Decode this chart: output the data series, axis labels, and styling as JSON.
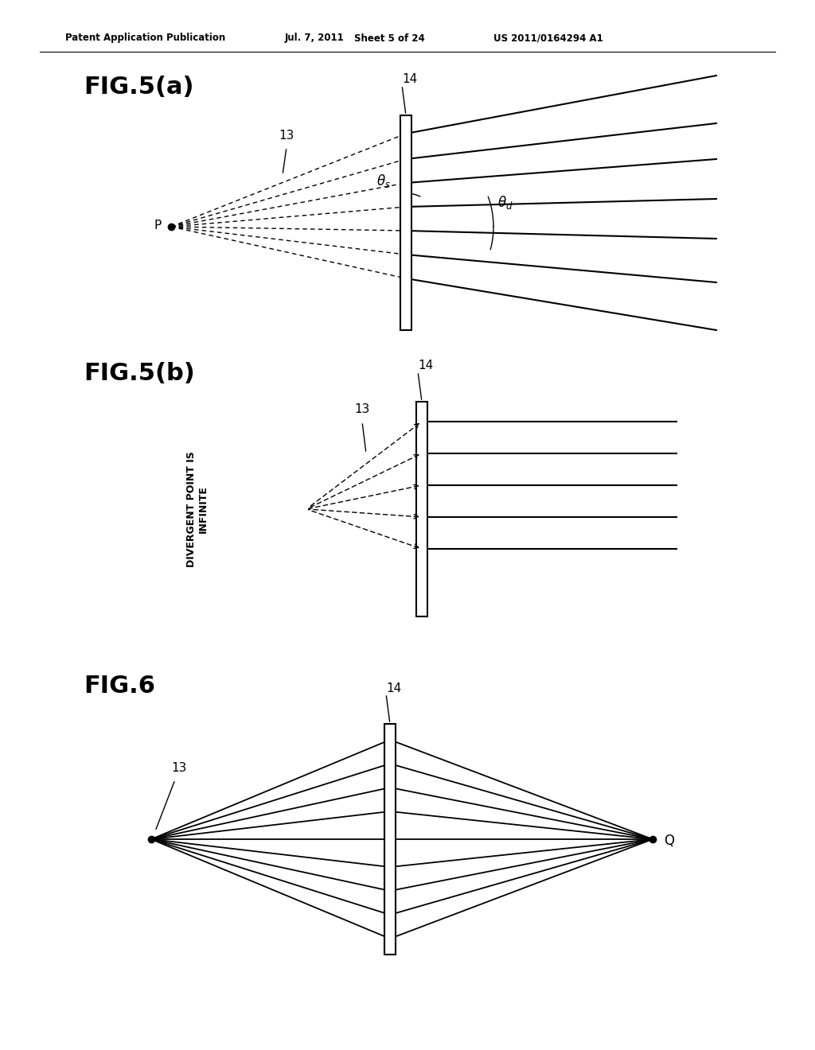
{
  "bg_color": "#ffffff",
  "header_text": "Patent Application Publication",
  "header_date": "Jul. 7, 2011",
  "header_sheet": "Sheet 5 of 24",
  "header_patent": "US 2011/0164294 A1",
  "fig5a_title": "FIG.5(a)",
  "fig5b_title": "FIG.5(b)",
  "fig6_title": "FIG.6",
  "line_color": "#000000"
}
